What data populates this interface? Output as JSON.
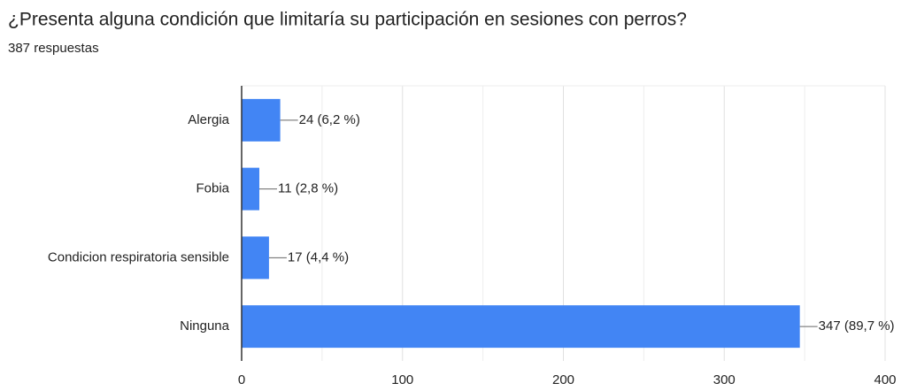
{
  "chart_data": {
    "type": "bar",
    "orientation": "horizontal",
    "title": "¿Presenta alguna condición que limitaría su participación en sesiones con perros?",
    "subtitle": "387 respuestas",
    "categories": [
      "Alergia",
      "Fobia",
      "Condicion respiratoria sensible",
      "Ninguna"
    ],
    "values": [
      24,
      11,
      17,
      347
    ],
    "value_labels": [
      "24 (6,2 %)",
      "11 (2,8 %)",
      "17 (4,4 %)",
      "347 (89,7 %)"
    ],
    "color": "#4285f4",
    "xlim": [
      0,
      400
    ],
    "xticks": [
      0,
      100,
      200,
      300,
      400
    ],
    "x_minor_ticks": [
      50,
      150,
      250,
      350
    ],
    "grid": true
  }
}
